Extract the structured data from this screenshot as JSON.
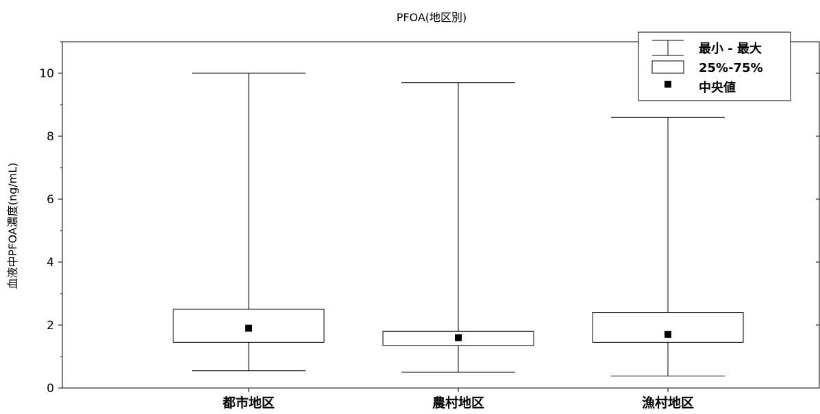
{
  "chart_data": {
    "type": "box",
    "title": "PFOA(地区別)",
    "xlabel": "",
    "ylabel": "血液中PFOA濃度(ng/mL)",
    "ylim": [
      0,
      11
    ],
    "y_ticks": [
      "0",
      "2",
      "4",
      "6",
      "8",
      "10"
    ],
    "categories": [
      "都市地区",
      "農村地区",
      "漁村地区"
    ],
    "boxes": [
      {
        "category": "都市地区",
        "min": 0.55,
        "q1": 1.45,
        "median": 1.9,
        "q3": 2.5,
        "max": 10.0
      },
      {
        "category": "農村地区",
        "min": 0.5,
        "q1": 1.35,
        "median": 1.6,
        "q3": 1.8,
        "max": 9.7
      },
      {
        "category": "漁村地区",
        "min": 0.38,
        "q1": 1.45,
        "median": 1.7,
        "q3": 2.4,
        "max": 8.6
      }
    ],
    "legend": {
      "position": "top-right",
      "entries": [
        {
          "kind": "whisker",
          "label": "最小 - 最大"
        },
        {
          "kind": "box",
          "label": "25%-75%"
        },
        {
          "kind": "median",
          "label": "中央値"
        }
      ]
    },
    "grid": false
  }
}
